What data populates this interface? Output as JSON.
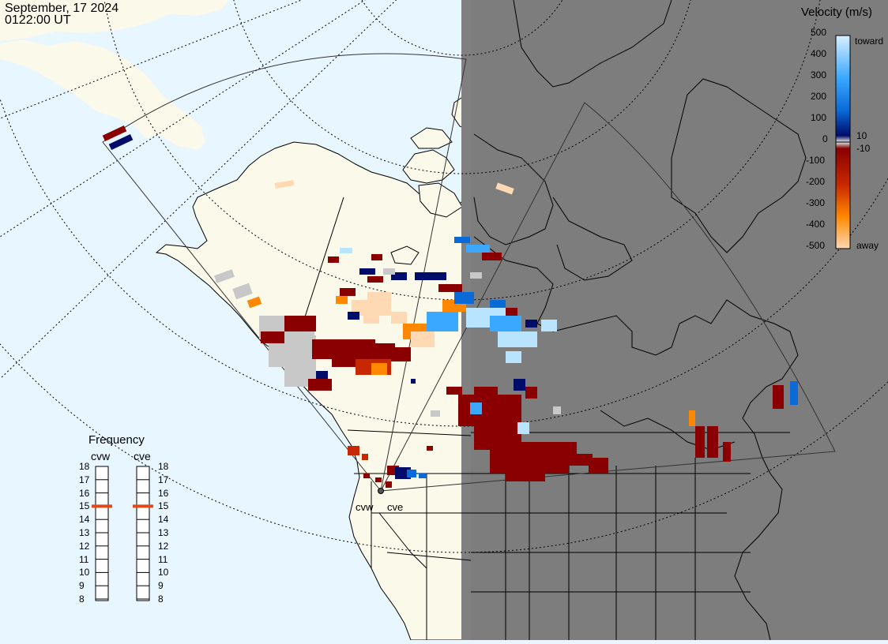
{
  "header": {
    "date": "September, 17 2024",
    "time": "0122:00 UT"
  },
  "colorbar": {
    "title": "Velocity (m/s)",
    "ticks": [
      "500",
      "400",
      "300",
      "200",
      "100",
      "0",
      "-100",
      "-200",
      "-300",
      "-400",
      "-500"
    ],
    "inner_pos": "10",
    "inner_neg": "-10",
    "toward": "toward",
    "away": "away",
    "colors": {
      "toward_max": "#d8f0ff",
      "toward_mid": "#0a8ae8",
      "toward_min": "#000c6a",
      "away_min": "#8a0000",
      "away_mid": "#e25000",
      "away_max": "#ffd8b4",
      "gray": "#c8c8c8"
    }
  },
  "frequency": {
    "title": "Frequency",
    "radars": [
      {
        "name": "cvw",
        "value": 15
      },
      {
        "name": "cve",
        "value": 15
      }
    ],
    "scale": [
      18,
      17,
      16,
      15,
      14,
      13,
      12,
      11,
      10,
      9,
      8
    ],
    "marker_color": "#e04a1a"
  },
  "map": {
    "ocean_color": "#e8f6ff",
    "land_color": "#fbf9e9",
    "night_color": "#808080",
    "site_labels": [
      "cvw",
      "cve"
    ]
  }
}
